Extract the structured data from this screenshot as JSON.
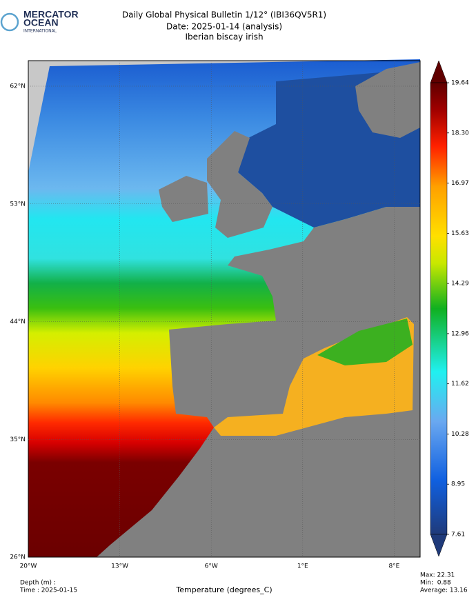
{
  "header": {
    "logo": [
      "MERCATOR",
      "OCEAN",
      "INTERNATIONAL"
    ],
    "title": "Daily Global Physical Bulletin 1/12° (IBI36QV5R1)",
    "date": "Date: 2025-01-14 (analysis)",
    "region": "Iberian biscay irish"
  },
  "map": {
    "lat_labels": [
      "62°N",
      "53°N",
      "44°N",
      "35°N",
      "26°N"
    ],
    "lon_labels": [
      "20°W",
      "13°W",
      "6°W",
      "1°E",
      "8°E"
    ]
  },
  "colorbar": {
    "labels": [
      "19.64",
      "18.30",
      "16.97",
      "15.63",
      "14.29",
      "12.96",
      "11.62",
      "10.28",
      "8.95",
      "7.61"
    ]
  },
  "footer": {
    "depth": "Depth (m) :",
    "time": "Time : 2025-01-15",
    "variable": "Temperature (degrees_C)",
    "max": "Max: 22.31",
    "min": "Min:  0.88",
    "average": "Average: 13.16"
  }
}
